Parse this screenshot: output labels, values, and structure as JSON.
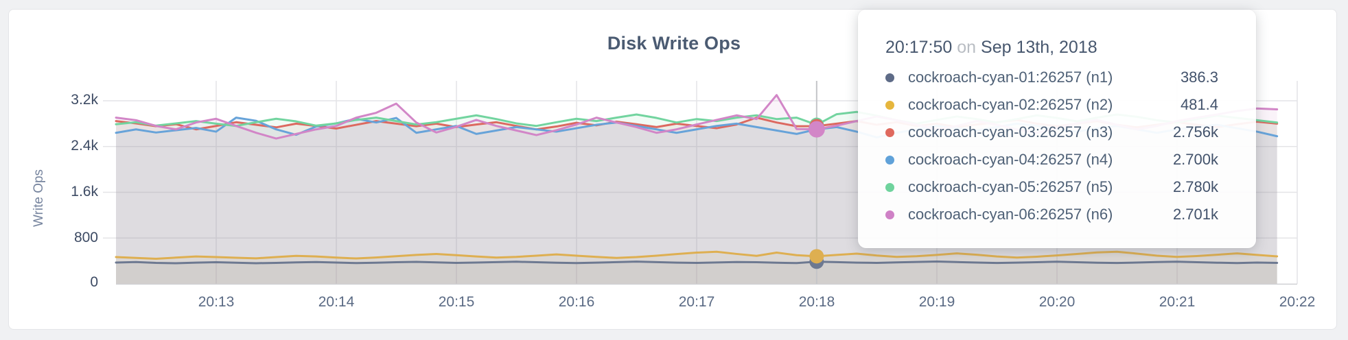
{
  "title": "Disk Write Ops",
  "y_axis": {
    "label": "Write Ops",
    "ticks": [
      "3.2k",
      "2.4k",
      "1.6k",
      "800",
      "0"
    ]
  },
  "x_axis": {
    "ticks": [
      "20:13",
      "20:14",
      "20:15",
      "20:16",
      "20:17",
      "20:18",
      "20:19",
      "20:20",
      "20:21",
      "20:22"
    ]
  },
  "tooltip": {
    "time": "20:17:50",
    "connector": "on",
    "date": "Sep 13th, 2018",
    "rows": [
      {
        "name": "cockroach-cyan-01:26257 (n1)",
        "value": "386.3",
        "color": "#5e6b87"
      },
      {
        "name": "cockroach-cyan-02:26257 (n2)",
        "value": "481.4",
        "color": "#e6b63d"
      },
      {
        "name": "cockroach-cyan-03:26257 (n3)",
        "value": "2.756k",
        "color": "#df695e"
      },
      {
        "name": "cockroach-cyan-04:26257 (n4)",
        "value": "2.700k",
        "color": "#60a2d9"
      },
      {
        "name": "cockroach-cyan-05:26257 (n5)",
        "value": "2.780k",
        "color": "#6fd39d"
      },
      {
        "name": "cockroach-cyan-06:26257 (n6)",
        "value": "2.701k",
        "color": "#cf81c6"
      }
    ]
  },
  "chart_data": {
    "type": "line",
    "title": "Disk Write Ops",
    "ylabel": "Write Ops",
    "x_start": "20:12:10",
    "x_interval_seconds": 10,
    "x_tick_labels": [
      "20:13",
      "20:14",
      "20:15",
      "20:16",
      "20:17",
      "20:18",
      "20:19",
      "20:20",
      "20:21",
      "20:22"
    ],
    "ytick_values": [
      0,
      800,
      1600,
      2400,
      3200
    ],
    "ytick_labels": [
      "0",
      "800",
      "1.6k",
      "2.4k",
      "3.2k"
    ],
    "ylim": [
      0,
      3550
    ],
    "grid": true,
    "legend_position": "tooltip",
    "hover": {
      "time": "20:17:50",
      "date": "Sep 13th, 2018",
      "index": 35
    },
    "hover_dot_draw_order": [
      0,
      1,
      3,
      4,
      2,
      5
    ],
    "series": [
      {
        "name": "cockroach-cyan-01:26257 (n1)",
        "color": "#6d7991",
        "hover_value": 386.3,
        "values": [
          372,
          381,
          366,
          359,
          370,
          377,
          368,
          360,
          366,
          374,
          380,
          371,
          363,
          369,
          377,
          383,
          374,
          366,
          371,
          379,
          386,
          377,
          368,
          362,
          370,
          379,
          388,
          379,
          370,
          365,
          373,
          381,
          377,
          368,
          363,
          386.3,
          379,
          370,
          366,
          374,
          382,
          389,
          380,
          371,
          364,
          370,
          378,
          386,
          378,
          369,
          364,
          372,
          381,
          387,
          378,
          369,
          363,
          371,
          366
        ]
      },
      {
        "name": "cockroach-cyan-02:26257 (n2)",
        "color": "#deaf51",
        "hover_value": 481.4,
        "values": [
          468,
          452,
          438,
          458,
          478,
          468,
          455,
          445,
          468,
          488,
          478,
          458,
          443,
          460,
          482,
          505,
          522,
          500,
          478,
          458,
          470,
          492,
          514,
          492,
          470,
          452,
          468,
          492,
          520,
          545,
          560,
          522,
          488,
          545,
          500,
          481.4,
          505,
          528,
          495,
          470,
          482,
          505,
          532,
          508,
          478,
          458,
          474,
          496,
          522,
          548,
          560,
          528,
          492,
          470,
          486,
          508,
          532,
          505,
          480
        ]
      },
      {
        "name": "cockroach-cyan-03:26257 (n3)",
        "color": "#dc6960",
        "hover_value": 2756,
        "values": [
          2845,
          2805,
          2755,
          2790,
          2700,
          2760,
          2825,
          2780,
          2735,
          2800,
          2760,
          2715,
          2780,
          2845,
          2800,
          2755,
          2800,
          2740,
          2785,
          2825,
          2760,
          2700,
          2750,
          2815,
          2770,
          2835,
          2790,
          2740,
          2800,
          2760,
          2720,
          2785,
          2905,
          2820,
          2755,
          2756,
          2800,
          2845,
          2780,
          2825,
          2760,
          2800,
          2740,
          2785,
          2825,
          2865,
          2800,
          2755,
          2800,
          2845,
          2780,
          2735,
          2780,
          2825,
          2780,
          2740,
          2790,
          2835,
          2800
        ]
      },
      {
        "name": "cockroach-cyan-04:26257 (n4)",
        "color": "#67a3d9",
        "hover_value": 2700,
        "values": [
          2640,
          2700,
          2645,
          2685,
          2725,
          2660,
          2905,
          2850,
          2700,
          2605,
          2750,
          2805,
          2885,
          2820,
          2900,
          2640,
          2700,
          2760,
          2620,
          2680,
          2740,
          2700,
          2660,
          2720,
          2780,
          2820,
          2760,
          2700,
          2640,
          2700,
          2760,
          2800,
          2740,
          2680,
          2620,
          2700,
          2740,
          2660,
          2560,
          2640,
          2700,
          2760,
          2720,
          2680,
          2740,
          2800,
          2760,
          2700,
          2660,
          2720,
          2760,
          2700,
          2640,
          2700,
          2740,
          2780,
          2720,
          2660,
          2580
        ]
      },
      {
        "name": "cockroach-cyan-05:26257 (n5)",
        "color": "#72d49f",
        "hover_value": 2780,
        "values": [
          2790,
          2825,
          2765,
          2805,
          2845,
          2800,
          2760,
          2825,
          2885,
          2840,
          2765,
          2805,
          2865,
          2905,
          2845,
          2785,
          2825,
          2885,
          2945,
          2880,
          2805,
          2760,
          2825,
          2885,
          2845,
          2905,
          2960,
          2900,
          2820,
          2880,
          2845,
          2905,
          2945,
          2880,
          2905,
          2780,
          2965,
          3005,
          2940,
          2860,
          2800,
          2865,
          2925,
          2880,
          2820,
          2880,
          2945,
          2900,
          2840,
          2905,
          2960,
          2920,
          2860,
          2820,
          2880,
          2940,
          2900,
          2860,
          2820
        ]
      },
      {
        "name": "cockroach-cyan-06:26257 (n6)",
        "color": "#d286c7",
        "hover_value": 2701,
        "values": [
          2905,
          2860,
          2760,
          2700,
          2820,
          2885,
          2760,
          2640,
          2540,
          2620,
          2700,
          2760,
          2905,
          2990,
          3150,
          2820,
          2645,
          2745,
          2865,
          2760,
          2680,
          2600,
          2685,
          2785,
          2905,
          2820,
          2740,
          2640,
          2700,
          2785,
          2865,
          2945,
          2880,
          3300,
          2705,
          2701,
          2765,
          2845,
          2925,
          2860,
          2780,
          2700,
          2760,
          2845,
          2780,
          2700,
          2640,
          2720,
          2805,
          2865,
          2780,
          2700,
          2760,
          2845,
          2905,
          2960,
          3020,
          3065,
          3050
        ]
      }
    ]
  }
}
